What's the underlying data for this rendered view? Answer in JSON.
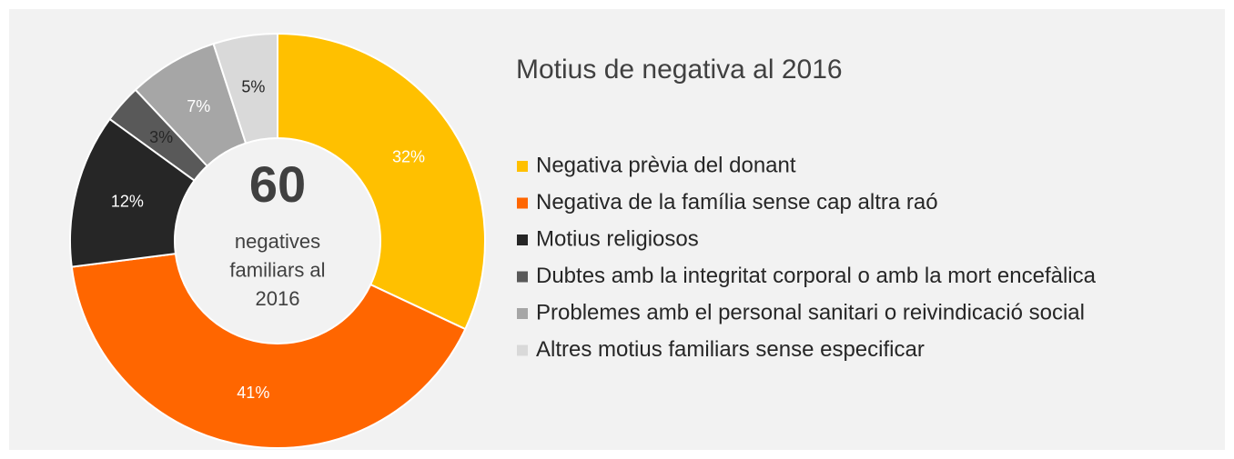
{
  "chart_data": {
    "type": "donut",
    "title": "Motius de negativa al 2016",
    "center_value": "60",
    "center_label": [
      "negatives",
      "familiars al",
      "2016"
    ],
    "categories": [
      "Negativa prèvia del donant",
      "Negativa de la família sense cap altra raó",
      "Motius religiosos",
      "Dubtes amb la integritat corporal o amb la mort encefàlica",
      "Problemes amb el personal sanitari o reivindicació social",
      "Altres motius familiars sense especificar"
    ],
    "values": [
      32,
      41,
      12,
      3,
      7,
      5
    ],
    "value_labels": [
      "32%",
      "41%",
      "12%",
      "3%",
      "7%",
      "5%"
    ],
    "colors": [
      "#ffc000",
      "#ff6600",
      "#262626",
      "#595959",
      "#a6a6a6",
      "#d9d9d9"
    ],
    "label_colors": [
      "#ffffff",
      "#ffffff",
      "#ffffff",
      "#262626",
      "#ffffff",
      "#262626"
    ],
    "legend": "right"
  }
}
